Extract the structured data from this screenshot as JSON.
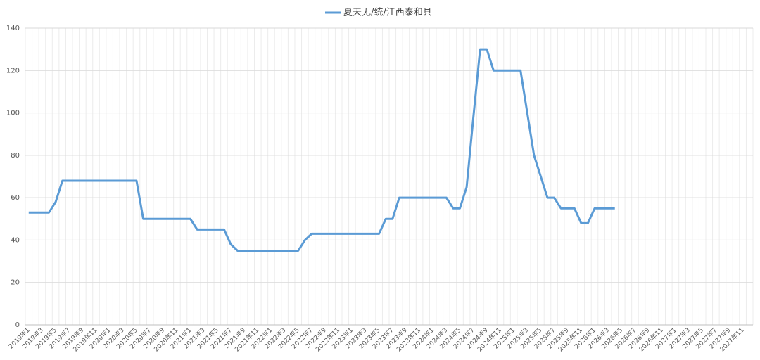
{
  "chart_data": {
    "type": "line",
    "categories": [
      "2019年1",
      null,
      "2019年3",
      null,
      "2019年5",
      null,
      "2019年7",
      null,
      "2019年9",
      null,
      "2019年11",
      null,
      "2020年1",
      null,
      "2020年3",
      null,
      "2020年5",
      null,
      "2020年7",
      null,
      "2020年9",
      null,
      "2020年11",
      null,
      "2021年1",
      null,
      "2021年3",
      null,
      "2021年5",
      null,
      "2021年7",
      null,
      "2021年9",
      null,
      "2021年11",
      null,
      "2022年1",
      null,
      "2022年3",
      null,
      "2022年5",
      null,
      "2022年7",
      null,
      "2022年9",
      null,
      "2022年11",
      null,
      "2023年1",
      null,
      "2023年3",
      null,
      "2023年5",
      null,
      "2023年7",
      null,
      "2023年9",
      null,
      "2023年11",
      null,
      "2024年1",
      null,
      "2024年3",
      null,
      "2024年5",
      null,
      "2024年7",
      null,
      "2024年9",
      null,
      "2024年11",
      null,
      "2025年1",
      null,
      "2025年3",
      null,
      "2025年5",
      null,
      "2025年7",
      null,
      "2025年9",
      null,
      "2025年11",
      null,
      "2026年1",
      null,
      "2026年3",
      null,
      "2026年5",
      null,
      "2026年7",
      null,
      "2026年9",
      null,
      "2026年11",
      null,
      "2027年1",
      null,
      "2027年3",
      null,
      "2027年5",
      null,
      "2027年7",
      null,
      "2027年9",
      null,
      "2027年11",
      null
    ],
    "series": [
      {
        "name": "夏天无/统/江西泰和县",
        "color": "#5b9bd5",
        "values": [
          53,
          53,
          53,
          53,
          58,
          68,
          68,
          68,
          68,
          68,
          68,
          68,
          68,
          68,
          68,
          68,
          68,
          50,
          50,
          50,
          50,
          50,
          50,
          50,
          50,
          45,
          45,
          45,
          45,
          45,
          38,
          35,
          35,
          35,
          35,
          35,
          35,
          35,
          35,
          35,
          35,
          40,
          43,
          43,
          43,
          43,
          43,
          43,
          43,
          43,
          43,
          43,
          43,
          50,
          50,
          60,
          60,
          60,
          60,
          60,
          60,
          60,
          60,
          55,
          55,
          65,
          98,
          130,
          130,
          120,
          120,
          120,
          120,
          120,
          100,
          80,
          70,
          60,
          60,
          55,
          55,
          55,
          48,
          48,
          55,
          55,
          55,
          55,
          null,
          null,
          null,
          null,
          null,
          null,
          null,
          null,
          null,
          null,
          null,
          null,
          null,
          null,
          null,
          null,
          null,
          null,
          null,
          null
        ]
      }
    ],
    "ylim": [
      0,
      140
    ],
    "yticks": [
      0,
      20,
      40,
      60,
      80,
      100,
      120,
      140
    ],
    "grid": true,
    "legend": "top"
  }
}
